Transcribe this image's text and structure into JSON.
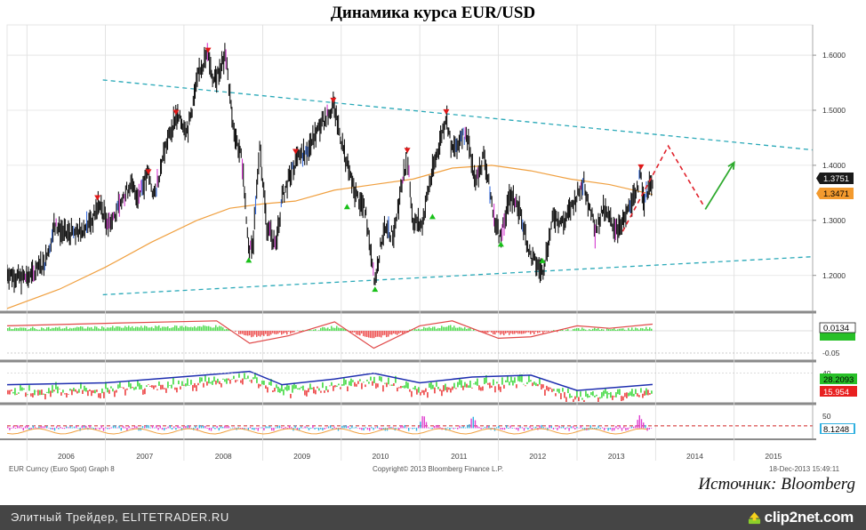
{
  "title": "Динамика курса EUR/USD",
  "source": "Источник: Bloomberg",
  "footer": {
    "left_text": "Элитный Трейдер, ELITETRADER.RU",
    "logo_text": "clip2net.com",
    "logo_icon": "upload-arrow-icon"
  },
  "bloomberg": {
    "security": "EUR Curncy (Euro Spot) Graph 8",
    "copyright": "Copyright© 2013 Bloomberg Finance L.P.",
    "timestamp": "18-Dec-2013 15:49:11"
  },
  "colors": {
    "price": "#111111",
    "trendline": "#2aa9b8",
    "moving_average": "#f0a040",
    "forecast": "#e0202a",
    "arrow": "#2eaa2e",
    "rsi_line": "#1f2fb0",
    "histogram_positive": "#55dd55",
    "histogram_negative": "#ee5555",
    "osc_bar_a": "#e040d0",
    "osc_bar_b": "#30b0e0"
  },
  "chart_data": [
    {
      "type": "line",
      "name": "price-panel",
      "x_axis": {
        "type": "date",
        "range": [
          "2005-10-01",
          "2016-01-01"
        ],
        "ticks": [
          "2006",
          "2007",
          "2008",
          "2009",
          "2010",
          "2011",
          "2012",
          "2013",
          "2014",
          "2015"
        ]
      },
      "y_axis": {
        "range": [
          1.135,
          1.655
        ],
        "position": "right",
        "ticks": [
          "1.6000",
          "1.5000",
          "1.4000",
          "1.3000",
          "1.2000"
        ]
      },
      "last_price_label": "1.3751",
      "ma_label": "1.3471",
      "price_path": [
        [
          "2005-10-01",
          1.205
        ],
        [
          "2005-12-01",
          1.195
        ],
        [
          "2006-02-01",
          1.2
        ],
        [
          "2006-04-01",
          1.23
        ],
        [
          "2006-05-10",
          1.29
        ],
        [
          "2006-07-01",
          1.275
        ],
        [
          "2006-09-01",
          1.28
        ],
        [
          "2006-11-01",
          1.3
        ],
        [
          "2006-12-01",
          1.33
        ],
        [
          "2007-01-15",
          1.295
        ],
        [
          "2007-03-01",
          1.32
        ],
        [
          "2007-04-25",
          1.365
        ],
        [
          "2007-06-01",
          1.345
        ],
        [
          "2007-07-20",
          1.385
        ],
        [
          "2007-08-15",
          1.34
        ],
        [
          "2007-10-01",
          1.425
        ],
        [
          "2007-11-25",
          1.49
        ],
        [
          "2008-01-20",
          1.465
        ],
        [
          "2008-03-15",
          1.575
        ],
        [
          "2008-04-22",
          1.6
        ],
        [
          "2008-05-20",
          1.55
        ],
        [
          "2008-07-15",
          1.6
        ],
        [
          "2008-08-15",
          1.475
        ],
        [
          "2008-10-01",
          1.4
        ],
        [
          "2008-10-28",
          1.245
        ],
        [
          "2008-11-20",
          1.265
        ],
        [
          "2008-12-18",
          1.44
        ],
        [
          "2009-01-20",
          1.29
        ],
        [
          "2009-03-04",
          1.25
        ],
        [
          "2009-04-01",
          1.34
        ],
        [
          "2009-06-01",
          1.405
        ],
        [
          "2009-08-01",
          1.43
        ],
        [
          "2009-10-01",
          1.475
        ],
        [
          "2009-11-25",
          1.51
        ],
        [
          "2010-01-20",
          1.415
        ],
        [
          "2010-03-01",
          1.355
        ],
        [
          "2010-04-25",
          1.315
        ],
        [
          "2010-06-07",
          1.19
        ],
        [
          "2010-07-15",
          1.28
        ],
        [
          "2010-09-01",
          1.275
        ],
        [
          "2010-11-04",
          1.42
        ],
        [
          "2010-11-30",
          1.3
        ],
        [
          "2011-01-10",
          1.29
        ],
        [
          "2011-02-15",
          1.365
        ],
        [
          "2011-05-04",
          1.49
        ],
        [
          "2011-06-01",
          1.425
        ],
        [
          "2011-07-15",
          1.455
        ],
        [
          "2011-08-20",
          1.44
        ],
        [
          "2011-09-15",
          1.365
        ],
        [
          "2011-10-27",
          1.42
        ],
        [
          "2011-12-15",
          1.3
        ],
        [
          "2012-01-13",
          1.265
        ],
        [
          "2012-02-25",
          1.345
        ],
        [
          "2012-04-01",
          1.33
        ],
        [
          "2012-05-30",
          1.235
        ],
        [
          "2012-07-24",
          1.205
        ],
        [
          "2012-09-15",
          1.31
        ],
        [
          "2012-11-01",
          1.295
        ],
        [
          "2013-02-01",
          1.37
        ],
        [
          "2013-03-27",
          1.28
        ],
        [
          "2013-05-01",
          1.32
        ],
        [
          "2013-07-10",
          1.28
        ],
        [
          "2013-09-01",
          1.325
        ],
        [
          "2013-10-25",
          1.38
        ],
        [
          "2013-11-07",
          1.335
        ],
        [
          "2013-12-18",
          1.3751
        ]
      ],
      "moving_average": [
        [
          "2005-10-01",
          1.14
        ],
        [
          "2006-06-01",
          1.175
        ],
        [
          "2007-01-01",
          1.215
        ],
        [
          "2007-08-01",
          1.26
        ],
        [
          "2008-03-01",
          1.3
        ],
        [
          "2008-08-01",
          1.322
        ],
        [
          "2009-01-01",
          1.33
        ],
        [
          "2009-06-01",
          1.335
        ],
        [
          "2009-12-01",
          1.355
        ],
        [
          "2010-06-01",
          1.365
        ],
        [
          "2010-12-01",
          1.375
        ],
        [
          "2011-06-01",
          1.395
        ],
        [
          "2011-12-01",
          1.4
        ],
        [
          "2012-06-01",
          1.39
        ],
        [
          "2012-12-01",
          1.375
        ],
        [
          "2013-06-01",
          1.365
        ],
        [
          "2013-12-18",
          1.3471
        ]
      ],
      "trendline_upper": [
        [
          "2006-12-20",
          1.555
        ],
        [
          "2015-12-31",
          1.428
        ]
      ],
      "trendline_lower": [
        [
          "2006-12-20",
          1.165
        ],
        [
          "2015-12-31",
          1.234
        ]
      ],
      "forecast_path": [
        [
          "2013-08-01",
          1.28
        ],
        [
          "2014-03-01",
          1.435
        ],
        [
          "2014-08-15",
          1.325
        ]
      ],
      "forecast_arrow": [
        [
          "2014-08-20",
          1.32
        ],
        [
          "2015-01-01",
          1.405
        ]
      ],
      "down_markers": [
        [
          "2006-11-25",
          1.336
        ],
        [
          "2007-07-20",
          1.383
        ],
        [
          "2007-11-25",
          1.491
        ],
        [
          "2008-04-22",
          1.604
        ],
        [
          "2009-06-03",
          1.42
        ],
        [
          "2009-11-25",
          1.513
        ],
        [
          "2010-11-04",
          1.422
        ],
        [
          "2011-05-04",
          1.492
        ],
        [
          "2013-10-25",
          1.392
        ]
      ],
      "up_markers": [
        [
          "2008-10-28",
          1.233
        ],
        [
          "2010-01-28",
          1.33
        ],
        [
          "2010-06-07",
          1.18
        ],
        [
          "2011-03-01",
          1.312
        ],
        [
          "2012-01-13",
          1.262
        ],
        [
          "2012-07-24",
          1.232
        ]
      ],
      "grid": true
    },
    {
      "type": "area",
      "name": "indicator-panel-1",
      "y_ticks": [
        "-0.05"
      ],
      "last_value_labels": [
        "0.0134"
      ],
      "signal_line": [
        [
          "2005-10-01",
          0.01
        ],
        [
          "2007-01-01",
          0.015
        ],
        [
          "2008-06-01",
          0.02
        ],
        [
          "2008-11-01",
          -0.025
        ],
        [
          "2009-05-01",
          -0.01
        ],
        [
          "2009-12-01",
          0.018
        ],
        [
          "2010-06-01",
          -0.035
        ],
        [
          "2011-01-01",
          0.01
        ],
        [
          "2011-06-01",
          0.02
        ],
        [
          "2012-01-01",
          -0.015
        ],
        [
          "2012-06-01",
          -0.012
        ],
        [
          "2013-01-01",
          0.01
        ],
        [
          "2013-06-01",
          0.005
        ],
        [
          "2013-12-18",
          0.0134
        ]
      ]
    },
    {
      "type": "area",
      "name": "indicator-panel-2",
      "y_ticks": [
        "40"
      ],
      "last_value_labels": [
        "28.2093",
        "15.954"
      ],
      "blue_line": [
        [
          "2005-10-01",
          28
        ],
        [
          "2007-01-01",
          30
        ],
        [
          "2008-04-01",
          38
        ],
        [
          "2008-11-01",
          42
        ],
        [
          "2009-04-01",
          28
        ],
        [
          "2009-12-01",
          34
        ],
        [
          "2010-06-01",
          40
        ],
        [
          "2011-01-01",
          30
        ],
        [
          "2011-09-01",
          36
        ],
        [
          "2012-06-01",
          38
        ],
        [
          "2013-01-01",
          22
        ],
        [
          "2013-12-18",
          28.2093
        ]
      ]
    },
    {
      "type": "bar",
      "name": "indicator-panel-3",
      "y_ticks": [
        "50"
      ],
      "last_value_labels": [
        "8.1248"
      ],
      "peaks": [
        [
          "2011-01-15",
          60
        ],
        [
          "2011-09-01",
          52
        ],
        [
          "2013-10-15",
          55
        ]
      ]
    }
  ]
}
